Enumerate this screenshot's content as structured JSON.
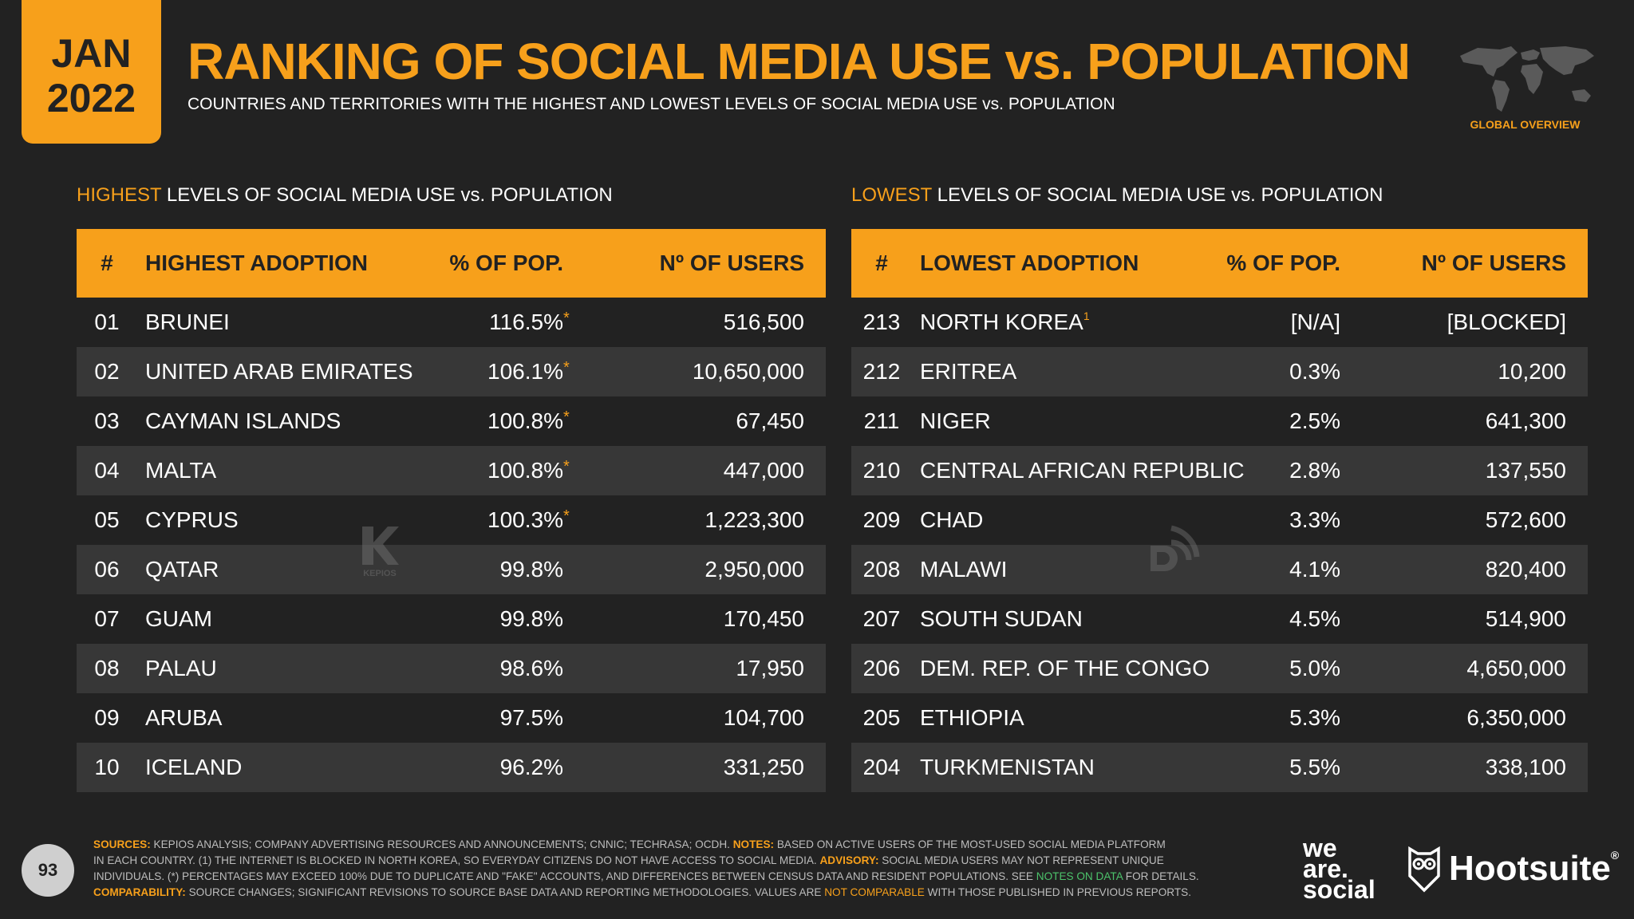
{
  "header": {
    "month": "JAN",
    "year": "2022",
    "title": "RANKING OF SOCIAL MEDIA USE vs. POPULATION",
    "subtitle": "COUNTRIES AND TERRITORIES WITH THE HIGHEST AND LOWEST LEVELS OF SOCIAL MEDIA USE vs. POPULATION",
    "globe_label": "GLOBAL OVERVIEW"
  },
  "highest": {
    "section_hl": "HIGHEST",
    "section_rest": " LEVELS OF SOCIAL MEDIA USE vs. POPULATION",
    "headers": {
      "num": "#",
      "name": "HIGHEST ADOPTION",
      "pct": "% OF POP.",
      "users": "Nº OF USERS"
    }
  },
  "lowest": {
    "section_hl": "LOWEST",
    "section_rest": " LEVELS OF SOCIAL MEDIA USE vs. POPULATION",
    "headers": {
      "num": "#",
      "name": "LOWEST ADOPTION",
      "pct": "% OF POP.",
      "users": "Nº OF USERS"
    }
  },
  "chart_data": [
    {
      "type": "table",
      "title": "HIGHEST LEVELS OF SOCIAL MEDIA USE vs. POPULATION",
      "columns": [
        "#",
        "HIGHEST ADOPTION",
        "% OF POP.",
        "Nº OF USERS"
      ],
      "rows": [
        {
          "rank": "01",
          "country": "BRUNEI",
          "pct": "116.5%",
          "flag": "*",
          "users": "516,500"
        },
        {
          "rank": "02",
          "country": "UNITED ARAB EMIRATES",
          "pct": "106.1%",
          "flag": "*",
          "users": "10,650,000"
        },
        {
          "rank": "03",
          "country": "CAYMAN ISLANDS",
          "pct": "100.8%",
          "flag": "*",
          "users": "67,450"
        },
        {
          "rank": "04",
          "country": "MALTA",
          "pct": "100.8%",
          "flag": "*",
          "users": "447,000"
        },
        {
          "rank": "05",
          "country": "CYPRUS",
          "pct": "100.3%",
          "flag": "*",
          "users": "1,223,300"
        },
        {
          "rank": "06",
          "country": "QATAR",
          "pct": "99.8%",
          "flag": "",
          "users": "2,950,000"
        },
        {
          "rank": "07",
          "country": "GUAM",
          "pct": "99.8%",
          "flag": "",
          "users": "170,450"
        },
        {
          "rank": "08",
          "country": "PALAU",
          "pct": "98.6%",
          "flag": "",
          "users": "17,950"
        },
        {
          "rank": "09",
          "country": "ARUBA",
          "pct": "97.5%",
          "flag": "",
          "users": "104,700"
        },
        {
          "rank": "10",
          "country": "ICELAND",
          "pct": "96.2%",
          "flag": "",
          "users": "331,250"
        }
      ]
    },
    {
      "type": "table",
      "title": "LOWEST LEVELS OF SOCIAL MEDIA USE vs. POPULATION",
      "columns": [
        "#",
        "LOWEST ADOPTION",
        "% OF POP.",
        "Nº OF USERS"
      ],
      "rows": [
        {
          "rank": "213",
          "country": "NORTH KOREA",
          "note": "1",
          "pct": "[N/A]",
          "users": "[BLOCKED]"
        },
        {
          "rank": "212",
          "country": "ERITREA",
          "note": "",
          "pct": "0.3%",
          "users": "10,200"
        },
        {
          "rank": "211",
          "country": "NIGER",
          "note": "",
          "pct": "2.5%",
          "users": "641,300"
        },
        {
          "rank": "210",
          "country": "CENTRAL AFRICAN REPUBLIC",
          "note": "",
          "pct": "2.8%",
          "users": "137,550"
        },
        {
          "rank": "209",
          "country": "CHAD",
          "note": "",
          "pct": "3.3%",
          "users": "572,600"
        },
        {
          "rank": "208",
          "country": "MALAWI",
          "note": "",
          "pct": "4.1%",
          "users": "820,400"
        },
        {
          "rank": "207",
          "country": "SOUTH SUDAN",
          "note": "",
          "pct": "4.5%",
          "users": "514,900"
        },
        {
          "rank": "206",
          "country": "DEM. REP. OF THE CONGO",
          "note": "",
          "pct": "5.0%",
          "users": "4,650,000"
        },
        {
          "rank": "205",
          "country": "ETHIOPIA",
          "note": "",
          "pct": "5.3%",
          "users": "6,350,000"
        },
        {
          "rank": "204",
          "country": "TURKMENISTAN",
          "note": "",
          "pct": "5.5%",
          "users": "338,100"
        }
      ]
    }
  ],
  "watermarks": {
    "kepios": "KEPIOS"
  },
  "footer": {
    "page_number": "93",
    "l1_sources": "SOURCES:",
    "l1_text": " KEPIOS ANALYSIS; COMPANY ADVERTISING RESOURCES AND ANNOUNCEMENTS; CNNIC; TECHRASA; OCDH. ",
    "l1_notes": "NOTES:",
    "l1_text2": " BASED ON ACTIVE USERS OF THE MOST-USED SOCIAL MEDIA PLATFORM",
    "l2_text": "IN EACH COUNTRY. (1) THE INTERNET IS BLOCKED IN NORTH KOREA, SO EVERYDAY CITIZENS DO NOT HAVE ACCESS TO SOCIAL MEDIA. ",
    "l2_advisory": "ADVISORY:",
    "l2_text2": " SOCIAL MEDIA USERS MAY NOT REPRESENT UNIQUE",
    "l3_text": "INDIVIDUALS. (*) PERCENTAGES MAY EXCEED 100% DUE TO DUPLICATE AND \"FAKE\" ACCOUNTS, AND DIFFERENCES BETWEEN CENSUS DATA AND RESIDENT POPULATIONS. SEE ",
    "l3_link": "NOTES ON DATA",
    "l3_text2": " FOR DETAILS.",
    "l4_comp": "COMPARABILITY:",
    "l4_text": " SOURCE CHANGES; SIGNIFICANT REVISIONS TO SOURCE BASE DATA AND REPORTING METHODOLOGIES. VALUES ARE ",
    "l4_nc": "NOT COMPARABLE",
    "l4_text2": " WITH THOSE PUBLISHED IN PREVIOUS REPORTS.",
    "brand1_l1": "we",
    "brand1_l2": "are.",
    "brand1_l3": "social",
    "brand2": "Hootsuite",
    "brand2_mark": "®"
  },
  "colors": {
    "accent": "#f7a01b",
    "background": "#222222",
    "row_alt": "#373737",
    "link_green": "#4cc36b"
  }
}
